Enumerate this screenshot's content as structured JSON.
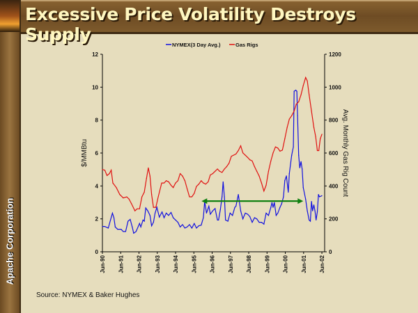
{
  "slide": {
    "title": "Excessive Price Volatility Destroys Supply",
    "brand": "Apache Corporation",
    "source": "Source: NYMEX & Baker Hughes"
  },
  "chart_data": {
    "type": "line",
    "title": "",
    "legend_position": "top",
    "grid": false,
    "x_axis": {
      "ticks": [
        "Jun-90",
        "Jun-91",
        "Jun-92",
        "Jun-93",
        "Jun-94",
        "Jun-95",
        "Jun-96",
        "Jun-97",
        "Jun-98",
        "Jun-99",
        "Jun-00",
        "Jun-01",
        "Jun-02"
      ],
      "range": [
        1990.5,
        2002.65
      ],
      "unit": "decimal year"
    },
    "y_left": {
      "label": "$/MMBtu",
      "range": [
        0,
        12
      ],
      "ticks": [
        "0",
        "2",
        "4",
        "6",
        "8",
        "10",
        "12"
      ]
    },
    "y_right": {
      "label": "Avg. Monthly Gas Rig Count",
      "range": [
        0,
        1200
      ],
      "ticks": [
        "0",
        "200",
        "400",
        "600",
        "800",
        "1000",
        "1200"
      ]
    },
    "series": [
      {
        "name": "NYMEX(3 Day Avg.)",
        "axis": "left",
        "color": "#1010e0",
        "points": [
          [
            1990.5,
            1.54
          ],
          [
            1990.63,
            1.54
          ],
          [
            1990.82,
            1.44
          ],
          [
            1990.94,
            1.93
          ],
          [
            1991.05,
            2.35
          ],
          [
            1991.13,
            2.07
          ],
          [
            1991.2,
            1.51
          ],
          [
            1991.33,
            1.37
          ],
          [
            1991.52,
            1.37
          ],
          [
            1991.64,
            1.23
          ],
          [
            1991.77,
            1.23
          ],
          [
            1991.9,
            1.86
          ],
          [
            1992.02,
            1.97
          ],
          [
            1992.13,
            1.51
          ],
          [
            1992.21,
            1.13
          ],
          [
            1992.34,
            1.23
          ],
          [
            1992.53,
            1.72
          ],
          [
            1992.6,
            1.51
          ],
          [
            1992.72,
            1.93
          ],
          [
            1992.79,
            1.86
          ],
          [
            1992.87,
            2.66
          ],
          [
            1992.98,
            2.49
          ],
          [
            1993.1,
            2.21
          ],
          [
            1993.19,
            1.58
          ],
          [
            1993.29,
            1.79
          ],
          [
            1993.38,
            2.35
          ],
          [
            1993.48,
            2.7
          ],
          [
            1993.61,
            2.11
          ],
          [
            1993.76,
            2.42
          ],
          [
            1993.87,
            2.07
          ],
          [
            1993.99,
            2.35
          ],
          [
            1994.12,
            2.21
          ],
          [
            1994.25,
            2.39
          ],
          [
            1994.37,
            2.07
          ],
          [
            1994.5,
            1.93
          ],
          [
            1994.63,
            1.79
          ],
          [
            1994.75,
            1.51
          ],
          [
            1994.88,
            1.65
          ],
          [
            1995.01,
            1.44
          ],
          [
            1995.13,
            1.51
          ],
          [
            1995.26,
            1.65
          ],
          [
            1995.39,
            1.44
          ],
          [
            1995.52,
            1.72
          ],
          [
            1995.64,
            1.44
          ],
          [
            1995.77,
            1.58
          ],
          [
            1995.9,
            1.62
          ],
          [
            1996.02,
            2.07
          ],
          [
            1996.09,
            3.06
          ],
          [
            1996.19,
            2.35
          ],
          [
            1996.32,
            2.77
          ],
          [
            1996.4,
            2.28
          ],
          [
            1996.53,
            2.49
          ],
          [
            1996.66,
            2.63
          ],
          [
            1996.79,
            1.93
          ],
          [
            1996.85,
            1.93
          ],
          [
            1996.95,
            2.56
          ],
          [
            1997.04,
            3.34
          ],
          [
            1997.1,
            4.25
          ],
          [
            1997.17,
            3.34
          ],
          [
            1997.23,
            1.93
          ],
          [
            1997.36,
            1.86
          ],
          [
            1997.48,
            2.35
          ],
          [
            1997.61,
            2.21
          ],
          [
            1997.74,
            2.7
          ],
          [
            1997.8,
            2.77
          ],
          [
            1997.93,
            3.48
          ],
          [
            1998.06,
            2.49
          ],
          [
            1998.18,
            2.0
          ],
          [
            1998.31,
            2.35
          ],
          [
            1998.44,
            2.28
          ],
          [
            1998.56,
            2.14
          ],
          [
            1998.69,
            1.79
          ],
          [
            1998.82,
            2.07
          ],
          [
            1998.94,
            2.0
          ],
          [
            1999.07,
            1.79
          ],
          [
            1999.2,
            1.79
          ],
          [
            1999.33,
            1.68
          ],
          [
            1999.45,
            2.35
          ],
          [
            1999.58,
            2.21
          ],
          [
            1999.71,
            2.7
          ],
          [
            1999.77,
            2.99
          ],
          [
            1999.83,
            2.7
          ],
          [
            1999.9,
            2.99
          ],
          [
            2000.0,
            2.21
          ],
          [
            2000.09,
            2.35
          ],
          [
            2000.21,
            2.7
          ],
          [
            2000.3,
            2.92
          ],
          [
            2000.4,
            3.34
          ],
          [
            2000.47,
            4.32
          ],
          [
            2000.56,
            4.61
          ],
          [
            2000.66,
            3.62
          ],
          [
            2000.72,
            4.75
          ],
          [
            2000.85,
            5.87
          ],
          [
            2000.94,
            6.37
          ],
          [
            2000.98,
            9.75
          ],
          [
            2001.07,
            9.82
          ],
          [
            2001.13,
            9.75
          ],
          [
            2001.17,
            8.27
          ],
          [
            2001.23,
            5.87
          ],
          [
            2001.29,
            5.1
          ],
          [
            2001.36,
            5.48
          ],
          [
            2001.42,
            5.03
          ],
          [
            2001.48,
            3.9
          ],
          [
            2001.61,
            3.2
          ],
          [
            2001.7,
            2.49
          ],
          [
            2001.8,
            1.93
          ],
          [
            2001.87,
            1.86
          ],
          [
            2001.93,
            3.06
          ],
          [
            2001.99,
            2.49
          ],
          [
            2002.06,
            2.85
          ],
          [
            2002.12,
            2.49
          ],
          [
            2002.18,
            1.93
          ],
          [
            2002.25,
            2.42
          ],
          [
            2002.31,
            3.48
          ],
          [
            2002.37,
            3.34
          ],
          [
            2002.5,
            3.41
          ]
        ]
      },
      {
        "name": "Gas Rigs",
        "axis": "right",
        "color": "#e01010",
        "points": [
          [
            1990.5,
            500
          ],
          [
            1990.63,
            496
          ],
          [
            1990.75,
            463
          ],
          [
            1990.88,
            475
          ],
          [
            1990.98,
            496
          ],
          [
            1991.07,
            418
          ],
          [
            1991.26,
            390
          ],
          [
            1991.45,
            348
          ],
          [
            1991.64,
            327
          ],
          [
            1991.83,
            334
          ],
          [
            1991.96,
            320
          ],
          [
            1992.09,
            292
          ],
          [
            1992.28,
            249
          ],
          [
            1992.4,
            261
          ],
          [
            1992.53,
            261
          ],
          [
            1992.66,
            334
          ],
          [
            1992.79,
            362
          ],
          [
            1992.91,
            446
          ],
          [
            1993.01,
            510
          ],
          [
            1993.1,
            460
          ],
          [
            1993.19,
            348
          ],
          [
            1993.29,
            270
          ],
          [
            1993.42,
            270
          ],
          [
            1993.55,
            334
          ],
          [
            1993.74,
            418
          ],
          [
            1993.87,
            418
          ],
          [
            1993.99,
            432
          ],
          [
            1994.12,
            425
          ],
          [
            1994.25,
            404
          ],
          [
            1994.37,
            390
          ],
          [
            1994.5,
            418
          ],
          [
            1994.63,
            432
          ],
          [
            1994.75,
            475
          ],
          [
            1994.88,
            460
          ],
          [
            1995.01,
            432
          ],
          [
            1995.13,
            383
          ],
          [
            1995.26,
            334
          ],
          [
            1995.39,
            334
          ],
          [
            1995.52,
            355
          ],
          [
            1995.64,
            397
          ],
          [
            1995.77,
            411
          ],
          [
            1995.9,
            432
          ],
          [
            1996.02,
            418
          ],
          [
            1996.15,
            411
          ],
          [
            1996.28,
            425
          ],
          [
            1996.4,
            467
          ],
          [
            1996.53,
            475
          ],
          [
            1996.66,
            489
          ],
          [
            1996.79,
            503
          ],
          [
            1996.91,
            489
          ],
          [
            1997.04,
            482
          ],
          [
            1997.17,
            503
          ],
          [
            1997.29,
            517
          ],
          [
            1997.42,
            538
          ],
          [
            1997.55,
            580
          ],
          [
            1997.67,
            587
          ],
          [
            1997.8,
            594
          ],
          [
            1997.93,
            615
          ],
          [
            1998.06,
            644
          ],
          [
            1998.18,
            601
          ],
          [
            1998.31,
            587
          ],
          [
            1998.44,
            573
          ],
          [
            1998.56,
            559
          ],
          [
            1998.69,
            552
          ],
          [
            1998.82,
            517
          ],
          [
            1998.94,
            489
          ],
          [
            1999.07,
            460
          ],
          [
            1999.2,
            418
          ],
          [
            1999.33,
            369
          ],
          [
            1999.45,
            404
          ],
          [
            1999.58,
            489
          ],
          [
            1999.71,
            552
          ],
          [
            1999.83,
            601
          ],
          [
            1999.96,
            637
          ],
          [
            2000.09,
            630
          ],
          [
            2000.21,
            611
          ],
          [
            2000.34,
            618
          ],
          [
            2000.47,
            686
          ],
          [
            2000.6,
            756
          ],
          [
            2000.72,
            806
          ],
          [
            2000.85,
            827
          ],
          [
            2000.98,
            855
          ],
          [
            2001.1,
            897
          ],
          [
            2001.23,
            911
          ],
          [
            2001.36,
            954
          ],
          [
            2001.48,
            1010
          ],
          [
            2001.61,
            1059
          ],
          [
            2001.7,
            1038
          ],
          [
            2001.8,
            954
          ],
          [
            2001.93,
            855
          ],
          [
            2002.06,
            756
          ],
          [
            2002.16,
            700
          ],
          [
            2002.25,
            615
          ],
          [
            2002.33,
            615
          ],
          [
            2002.41,
            686
          ],
          [
            2002.5,
            714
          ]
        ]
      }
    ],
    "annotations": [
      {
        "type": "double-arrow",
        "color": "#108010",
        "x_from": 1995.92,
        "x_to": 2001.48,
        "y": 3.08,
        "axis": "left"
      }
    ]
  }
}
